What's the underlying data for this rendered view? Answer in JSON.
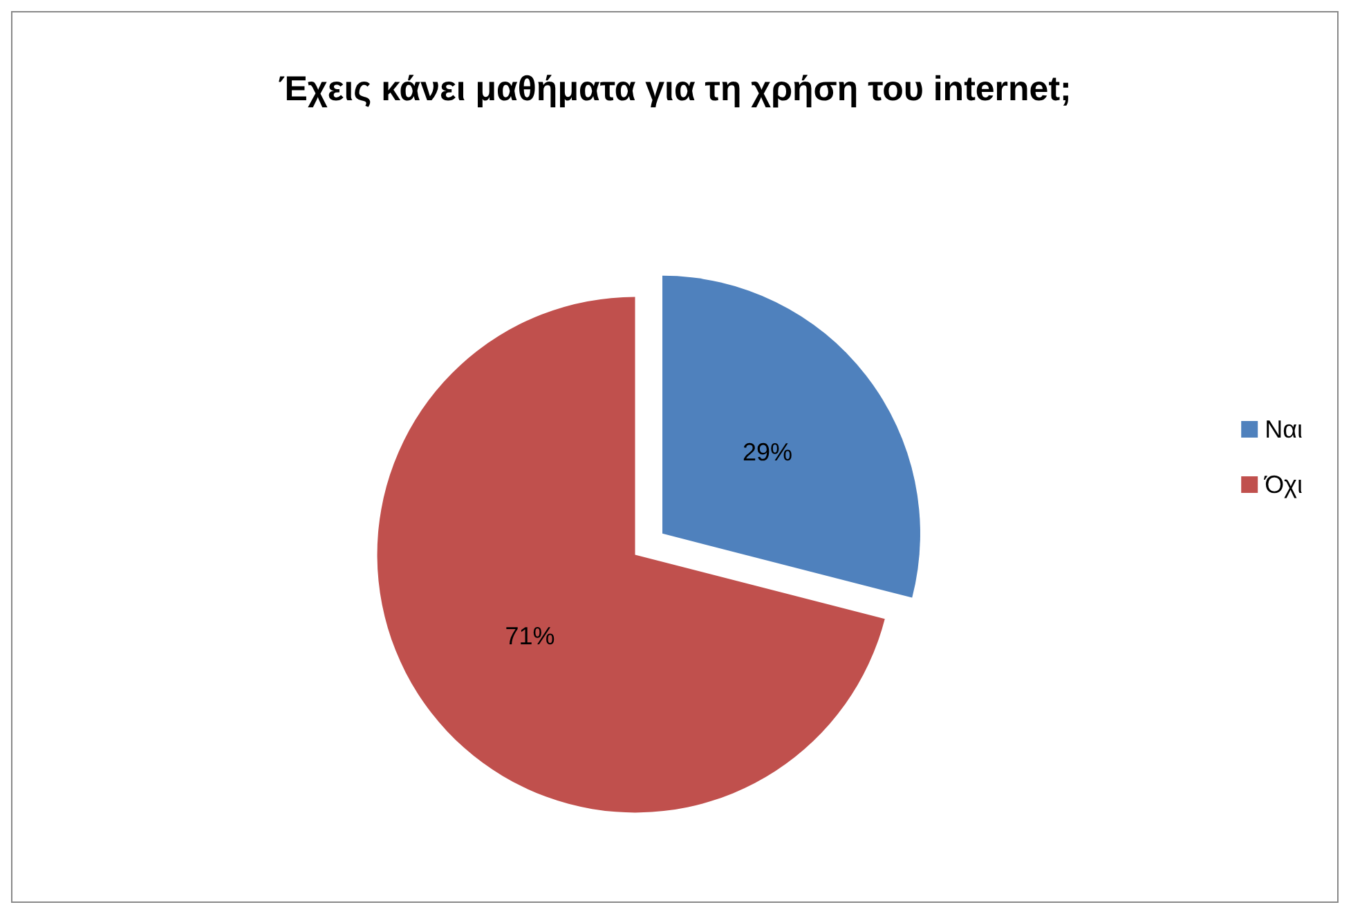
{
  "chart_data": {
    "type": "pie",
    "title": "Έχεις κάνει μαθήματα για τη χρήση του internet;",
    "categories": [
      "Ναι",
      "Όχι"
    ],
    "values": [
      29,
      71
    ],
    "colors": [
      "#4f81bd",
      "#c0504d"
    ],
    "value_labels": [
      "29%",
      "71%"
    ],
    "legend": "right"
  }
}
